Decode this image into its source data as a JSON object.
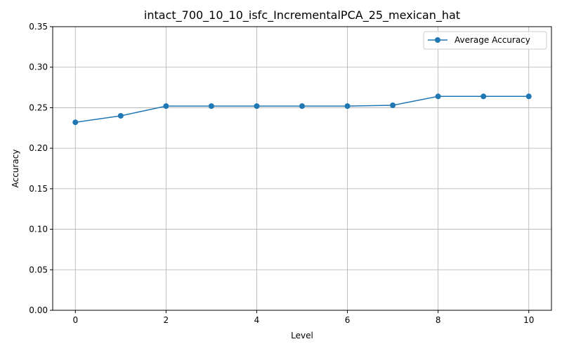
{
  "chart_data": {
    "type": "line",
    "title": "intact_700_10_10_isfc_IncrementalPCA_25_mexican_hat",
    "xlabel": "Level",
    "ylabel": "Accuracy",
    "xlim": [
      -0.5,
      10.5
    ],
    "ylim": [
      0,
      0.35
    ],
    "xticks": [
      0,
      2,
      4,
      6,
      8,
      10
    ],
    "yticks": [
      0.0,
      0.05,
      0.1,
      0.15,
      0.2,
      0.25,
      0.3,
      0.35
    ],
    "ytick_format": "2dp",
    "grid": true,
    "legend_position": "upper right",
    "x": [
      0,
      1,
      2,
      3,
      4,
      5,
      6,
      7,
      8,
      9,
      10
    ],
    "series": [
      {
        "name": "Average Accuracy",
        "color": "#1f77b4",
        "marker": "circle",
        "values": [
          0.232,
          0.24,
          0.252,
          0.252,
          0.252,
          0.252,
          0.252,
          0.253,
          0.264,
          0.264,
          0.264
        ]
      }
    ]
  }
}
